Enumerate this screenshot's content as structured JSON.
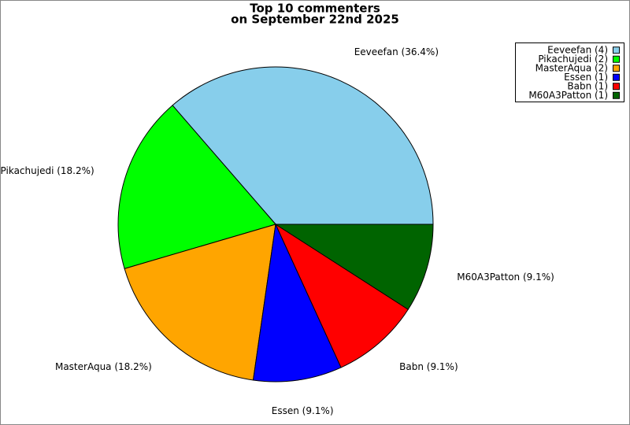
{
  "chart_data": {
    "type": "pie",
    "title": "Top 10 commenters",
    "subtitle": "on September 22nd 2025",
    "categories": [
      "Eeveefan",
      "Pikachujedi",
      "MasterAqua",
      "Essen",
      "Babn",
      "M60A3Patton"
    ],
    "values": [
      4,
      2,
      2,
      1,
      1,
      1
    ],
    "slice_labels": [
      "Eeveefan (36.4%)",
      "Pikachujedi (18.2%)",
      "MasterAqua (18.2%)",
      "Essen (9.1%)",
      "Babn (9.1%)",
      "M60A3Patton (9.1%)"
    ],
    "legend_labels": [
      "Eeveefan (4)",
      "Pikachujedi (2)",
      "MasterAqua (2)",
      "Essen (1)",
      "Babn (1)",
      "M60A3Patton (1)"
    ],
    "colors": [
      "#87ceeb",
      "#00ff00",
      "#ffa500",
      "#0000ff",
      "#ff0000",
      "#006400"
    ],
    "legend": "top-right"
  }
}
